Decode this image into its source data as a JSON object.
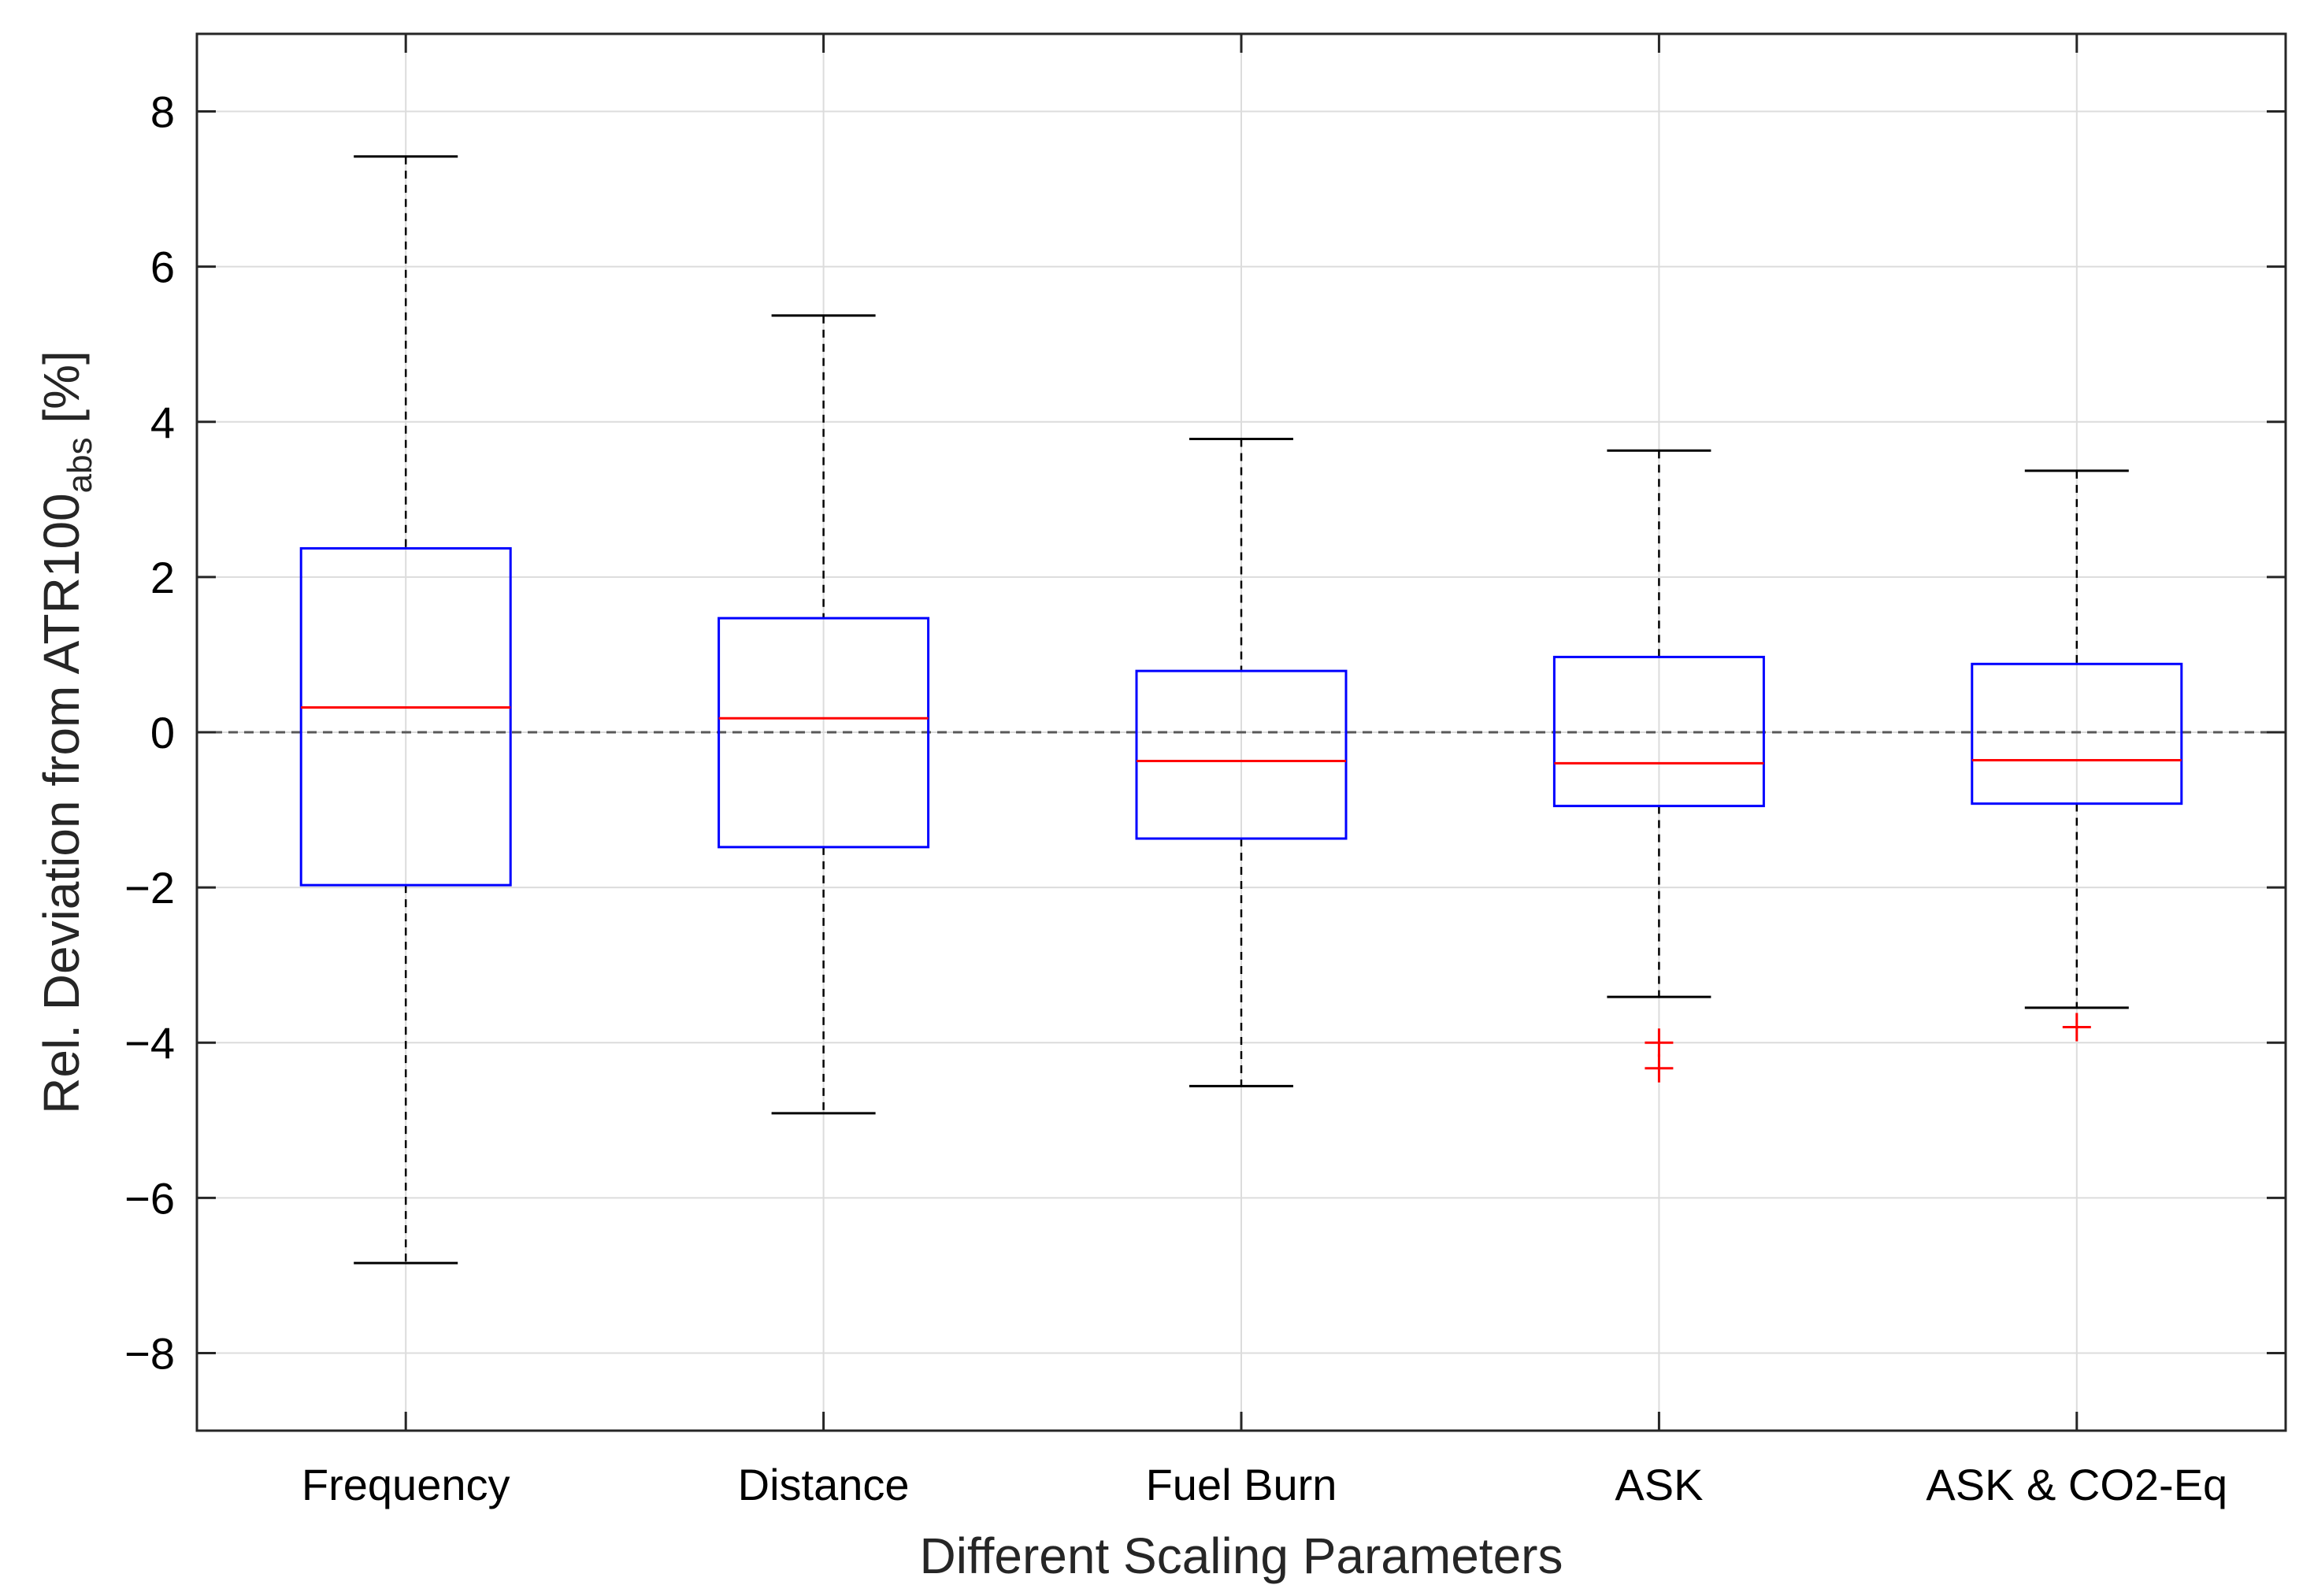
{
  "chart_data": {
    "type": "box",
    "title": "",
    "xlabel": "Different Scaling Parameters",
    "ylabel": {
      "prefix": "Rel. Deviation from ATR100",
      "subscript": "abs",
      "suffix": " [%]"
    },
    "ylim": [
      -9,
      9
    ],
    "yticks": [
      -8,
      -6,
      -4,
      -2,
      0,
      2,
      4,
      6,
      8
    ],
    "ytick_labels": [
      "−8",
      "−6",
      "−4",
      "−2",
      "0",
      "2",
      "4",
      "6",
      "8"
    ],
    "grid": true,
    "reference_line": 0,
    "categories": [
      "Frequency",
      "Distance",
      "Fuel Burn",
      "ASK",
      "ASK & CO2-Eq"
    ],
    "boxes": [
      {
        "name": "Frequency",
        "whisker_low": -6.84,
        "q1": -1.97,
        "median": 0.32,
        "q3": 2.37,
        "whisker_high": 7.42,
        "outliers": []
      },
      {
        "name": "Distance",
        "whisker_low": -4.91,
        "q1": -1.48,
        "median": 0.18,
        "q3": 1.47,
        "whisker_high": 5.37,
        "outliers": []
      },
      {
        "name": "Fuel Burn",
        "whisker_low": -4.56,
        "q1": -1.37,
        "median": -0.37,
        "q3": 0.79,
        "whisker_high": 3.78,
        "outliers": []
      },
      {
        "name": "ASK",
        "whisker_low": -3.41,
        "q1": -0.95,
        "median": -0.4,
        "q3": 0.97,
        "whisker_high": 3.63,
        "outliers": [
          -4.0,
          -4.33
        ]
      },
      {
        "name": "ASK & CO2-Eq",
        "whisker_low": -3.55,
        "q1": -0.92,
        "median": -0.36,
        "q3": 0.88,
        "whisker_high": 3.37,
        "outliers": [
          -3.8
        ]
      }
    ],
    "colors": {
      "box": "#0000ff",
      "median": "#ff0000",
      "whisker": "#000000",
      "outlier": "#ff0000",
      "grid": "#dcdcdc",
      "reference": "#595959",
      "axes": "#262626"
    }
  }
}
